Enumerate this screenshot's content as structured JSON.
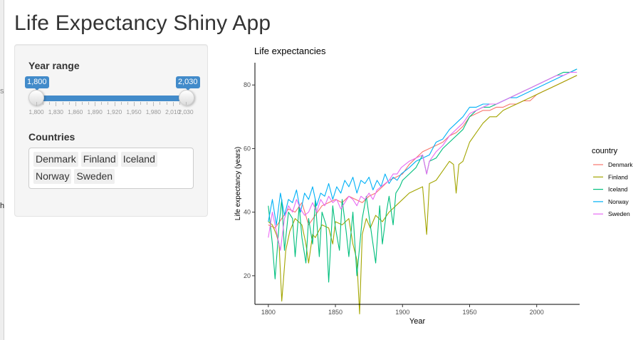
{
  "app": {
    "title": "Life Expectancy Shiny App"
  },
  "edge_fragments": [
    "h",
    "s"
  ],
  "sidebar": {
    "year_range": {
      "label": "Year range",
      "from_display": "1,800",
      "to_display": "2,030",
      "min": 1800,
      "max": 2030,
      "from": 1800,
      "to": 2030,
      "grid_labels": [
        "1,800",
        "1,830",
        "1,860",
        "1,890",
        "1,920",
        "1,950",
        "1,980",
        "2,010",
        "2,030"
      ]
    },
    "countries": {
      "label": "Countries",
      "selected": [
        "Denmark",
        "Finland",
        "Iceland",
        "Norway",
        "Sweden"
      ]
    }
  },
  "chart_data": {
    "type": "line",
    "title": "Life expectancies",
    "xlabel": "Year",
    "ylabel": "Life expectancy (years)",
    "xlim": [
      1790,
      2032
    ],
    "ylim": [
      11,
      87
    ],
    "x_ticks": [
      1800,
      1850,
      1900,
      1950,
      2000
    ],
    "y_ticks": [
      20,
      40,
      60,
      80
    ],
    "grid": false,
    "legend": {
      "title": "country",
      "position": "right"
    },
    "series": [
      {
        "name": "Denmark",
        "color": "#F8766D",
        "x": [
          1800,
          1805,
          1810,
          1815,
          1820,
          1825,
          1830,
          1835,
          1840,
          1845,
          1850,
          1855,
          1860,
          1865,
          1870,
          1875,
          1880,
          1885,
          1890,
          1895,
          1900,
          1905,
          1910,
          1915,
          1920,
          1925,
          1930,
          1935,
          1940,
          1945,
          1950,
          1955,
          1960,
          1965,
          1970,
          1975,
          1980,
          1985,
          1990,
          1995,
          2000,
          2005,
          2010,
          2015,
          2020,
          2025,
          2030
        ],
        "y": [
          36,
          35,
          38,
          41,
          40,
          43,
          36,
          39,
          42,
          43,
          44,
          43,
          45,
          44,
          43,
          45,
          46,
          48,
          50,
          51,
          52,
          55,
          57,
          59,
          60,
          61,
          62,
          64,
          65,
          67,
          70,
          71,
          72,
          72,
          73,
          73,
          74,
          74,
          75,
          75,
          77,
          78,
          79,
          80,
          81,
          82,
          83
        ]
      },
      {
        "name": "Finland",
        "color": "#A3A500",
        "x": [
          1800,
          1803,
          1806,
          1808,
          1810,
          1813,
          1816,
          1820,
          1825,
          1828,
          1830,
          1833,
          1835,
          1840,
          1845,
          1848,
          1850,
          1855,
          1860,
          1863,
          1866,
          1868,
          1870,
          1873,
          1876,
          1880,
          1885,
          1890,
          1895,
          1900,
          1905,
          1910,
          1915,
          1918,
          1920,
          1925,
          1930,
          1935,
          1938,
          1940,
          1942,
          1945,
          1950,
          1955,
          1960,
          1965,
          1970,
          1975,
          1980,
          1985,
          1990,
          1995,
          2000,
          2005,
          2010,
          2015,
          2020,
          2025,
          2030
        ],
        "y": [
          37,
          36,
          33,
          30,
          12,
          28,
          34,
          38,
          36,
          30,
          24,
          33,
          32,
          36,
          35,
          30,
          37,
          36,
          38,
          30,
          25,
          8,
          33,
          38,
          35,
          39,
          37,
          40,
          42,
          44,
          46,
          47,
          48,
          33,
          49,
          50,
          53,
          56,
          55,
          46,
          55,
          56,
          62,
          65,
          68,
          70,
          70,
          72,
          73,
          74,
          75,
          76,
          77,
          78,
          79,
          80,
          81,
          82,
          83
        ]
      },
      {
        "name": "Iceland",
        "color": "#00BF7D",
        "x": [
          1800,
          1803,
          1805,
          1808,
          1810,
          1812,
          1815,
          1818,
          1820,
          1823,
          1825,
          1828,
          1830,
          1833,
          1835,
          1838,
          1840,
          1843,
          1845,
          1848,
          1850,
          1853,
          1855,
          1858,
          1860,
          1863,
          1866,
          1870,
          1873,
          1876,
          1880,
          1883,
          1885,
          1888,
          1890,
          1893,
          1895,
          1898,
          1900,
          1905,
          1910,
          1915,
          1918,
          1920,
          1925,
          1930,
          1935,
          1940,
          1945,
          1950,
          1955,
          1960,
          1965,
          1970,
          1975,
          1980,
          1985,
          1990,
          1995,
          2000,
          2005,
          2010,
          2015,
          2020,
          2025,
          2030
        ],
        "y": [
          42,
          30,
          19,
          36,
          44,
          28,
          40,
          38,
          26,
          42,
          32,
          24,
          38,
          30,
          44,
          26,
          40,
          36,
          18,
          42,
          35,
          28,
          44,
          34,
          26,
          40,
          20,
          38,
          45,
          36,
          24,
          42,
          30,
          40,
          45,
          36,
          46,
          48,
          50,
          52,
          54,
          58,
          52,
          56,
          57,
          60,
          62,
          64,
          66,
          70,
          72,
          73,
          73,
          74,
          75,
          76,
          77,
          78,
          79,
          80,
          81,
          82,
          83,
          84,
          84,
          85
        ]
      },
      {
        "name": "Norway",
        "color": "#00B0F6",
        "x": [
          1800,
          1803,
          1806,
          1809,
          1812,
          1815,
          1818,
          1821,
          1824,
          1827,
          1830,
          1833,
          1836,
          1839,
          1842,
          1845,
          1848,
          1851,
          1854,
          1857,
          1860,
          1863,
          1866,
          1869,
          1872,
          1875,
          1878,
          1881,
          1884,
          1887,
          1890,
          1893,
          1896,
          1899,
          1902,
          1905,
          1910,
          1915,
          1920,
          1925,
          1930,
          1935,
          1940,
          1945,
          1950,
          1955,
          1960,
          1965,
          1970,
          1975,
          1980,
          1985,
          1990,
          1995,
          2000,
          2005,
          2010,
          2015,
          2020,
          2025,
          2030
        ],
        "y": [
          37,
          44,
          36,
          46,
          39,
          44,
          43,
          47,
          40,
          46,
          44,
          48,
          42,
          46,
          45,
          49,
          44,
          48,
          46,
          50,
          48,
          51,
          46,
          50,
          49,
          51,
          47,
          50,
          48,
          52,
          49,
          51,
          50,
          52,
          53,
          54,
          56,
          57,
          58,
          62,
          63,
          66,
          68,
          70,
          73,
          73,
          74,
          74,
          74,
          75,
          76,
          76,
          77,
          78,
          79,
          80,
          81,
          82,
          83,
          84,
          85
        ]
      },
      {
        "name": "Sweden",
        "color": "#E76BF3",
        "x": [
          1800,
          1803,
          1806,
          1809,
          1812,
          1815,
          1818,
          1821,
          1824,
          1827,
          1830,
          1833,
          1836,
          1839,
          1842,
          1845,
          1848,
          1851,
          1854,
          1857,
          1860,
          1863,
          1866,
          1869,
          1872,
          1875,
          1878,
          1881,
          1884,
          1887,
          1890,
          1893,
          1896,
          1899,
          1902,
          1905,
          1910,
          1915,
          1918,
          1920,
          1925,
          1930,
          1935,
          1940,
          1945,
          1950,
          1955,
          1960,
          1965,
          1970,
          1975,
          1980,
          1985,
          1990,
          1995,
          2000,
          2005,
          2010,
          2015,
          2020,
          2025,
          2030
        ],
        "y": [
          32,
          40,
          34,
          28,
          38,
          42,
          40,
          44,
          41,
          39,
          40,
          43,
          40,
          44,
          42,
          45,
          43,
          44,
          41,
          43,
          45,
          44,
          42,
          45,
          44,
          46,
          44,
          47,
          48,
          49,
          50,
          52,
          52,
          54,
          55,
          56,
          57,
          58,
          52,
          56,
          59,
          61,
          64,
          66,
          68,
          71,
          72,
          73,
          74,
          74,
          75,
          76,
          77,
          78,
          79,
          80,
          81,
          82,
          83,
          83,
          84,
          84
        ]
      }
    ]
  }
}
